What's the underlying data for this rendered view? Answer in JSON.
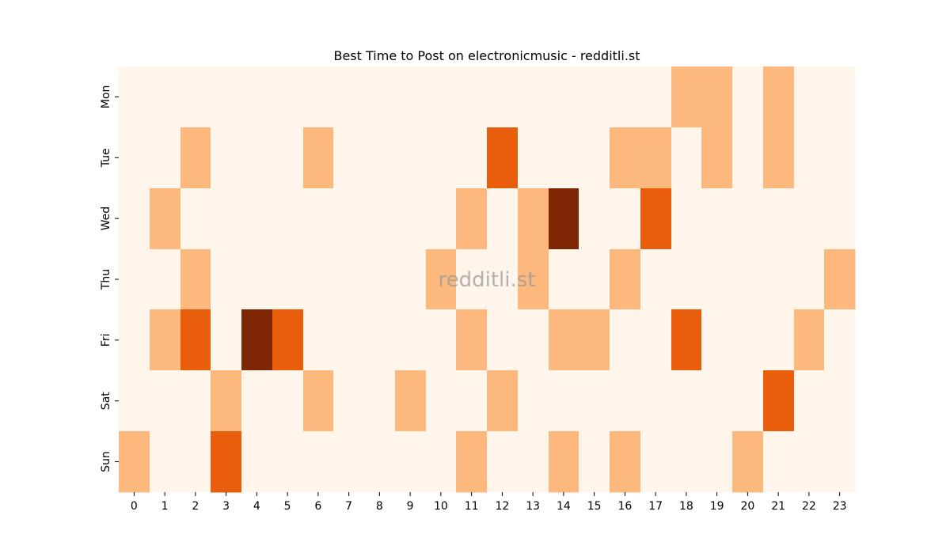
{
  "chart_data": {
    "type": "heatmap",
    "title": "Best Time to Post on electronicmusic - redditli.st",
    "watermark": "redditli.st",
    "xlabel": "",
    "ylabel": "",
    "x_labels": [
      "0",
      "1",
      "2",
      "3",
      "4",
      "5",
      "6",
      "7",
      "8",
      "9",
      "10",
      "11",
      "12",
      "13",
      "14",
      "15",
      "16",
      "17",
      "18",
      "19",
      "20",
      "21",
      "22",
      "23"
    ],
    "y_labels": [
      "Mon",
      "Tue",
      "Wed",
      "Thu",
      "Fri",
      "Sat",
      "Sun"
    ],
    "values": [
      [
        0,
        0,
        0,
        0,
        0,
        0,
        0,
        0,
        0,
        0,
        0,
        0,
        0,
        0,
        0,
        0,
        0,
        0,
        1,
        1,
        0,
        1,
        0,
        0
      ],
      [
        0,
        0,
        1,
        0,
        0,
        0,
        1,
        0,
        0,
        0,
        0,
        0,
        2,
        0,
        0,
        0,
        1,
        1,
        0,
        1,
        0,
        1,
        0,
        0
      ],
      [
        0,
        1,
        0,
        0,
        0,
        0,
        0,
        0,
        0,
        0,
        0,
        1,
        0,
        1,
        3,
        0,
        0,
        2,
        0,
        0,
        0,
        0,
        0,
        0
      ],
      [
        0,
        0,
        1,
        0,
        0,
        0,
        0,
        0,
        0,
        0,
        1,
        0,
        0,
        1,
        0,
        0,
        1,
        0,
        0,
        0,
        0,
        0,
        0,
        1
      ],
      [
        0,
        1,
        2,
        0,
        3,
        2,
        0,
        0,
        0,
        0,
        0,
        1,
        0,
        0,
        1,
        1,
        0,
        0,
        2,
        0,
        0,
        0,
        1,
        0
      ],
      [
        0,
        0,
        0,
        1,
        0,
        0,
        1,
        0,
        0,
        1,
        0,
        0,
        1,
        0,
        0,
        0,
        0,
        0,
        0,
        0,
        0,
        2,
        0,
        0
      ],
      [
        1,
        0,
        0,
        2,
        0,
        0,
        0,
        0,
        0,
        0,
        0,
        1,
        0,
        0,
        1,
        0,
        1,
        0,
        0,
        0,
        1,
        0,
        0,
        0
      ]
    ],
    "vmin": 0,
    "vmax": 3,
    "colormap": [
      "#fff5eb",
      "#fdb97d",
      "#e95e0d",
      "#7f2704"
    ],
    "colorbar": false
  }
}
